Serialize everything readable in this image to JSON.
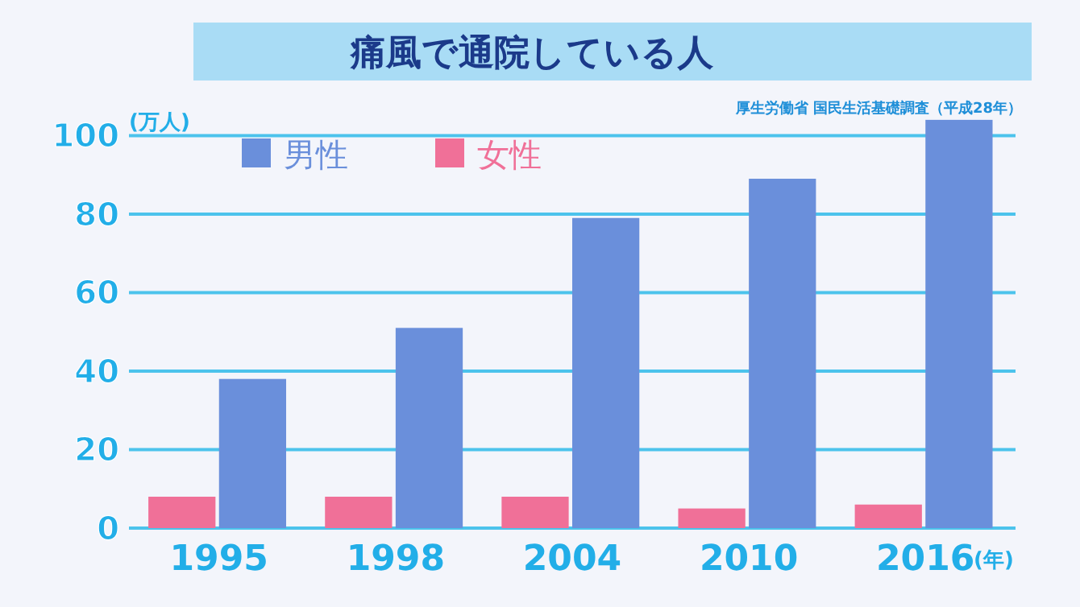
{
  "chart_data": {
    "type": "bar",
    "title": "痛風で通院している人",
    "ylabel": "(万人)",
    "xlabel": "(年)",
    "annotations": [
      "厚生労働省 国民生活基礎調査（平成28年）"
    ],
    "categories": [
      "1995",
      "1998",
      "2004",
      "2010",
      "2016"
    ],
    "series": [
      {
        "name": "男性",
        "color": "#6a8fdb",
        "values": [
          38,
          51,
          79,
          89,
          104
        ]
      },
      {
        "name": "女性",
        "color": "#f07098",
        "values": [
          8,
          8,
          8,
          5,
          6
        ]
      }
    ],
    "ylim": [
      0,
      105
    ],
    "yticks": [
      0,
      20,
      40,
      60,
      80,
      100
    ],
    "grid": "y",
    "legend": "top left"
  }
}
